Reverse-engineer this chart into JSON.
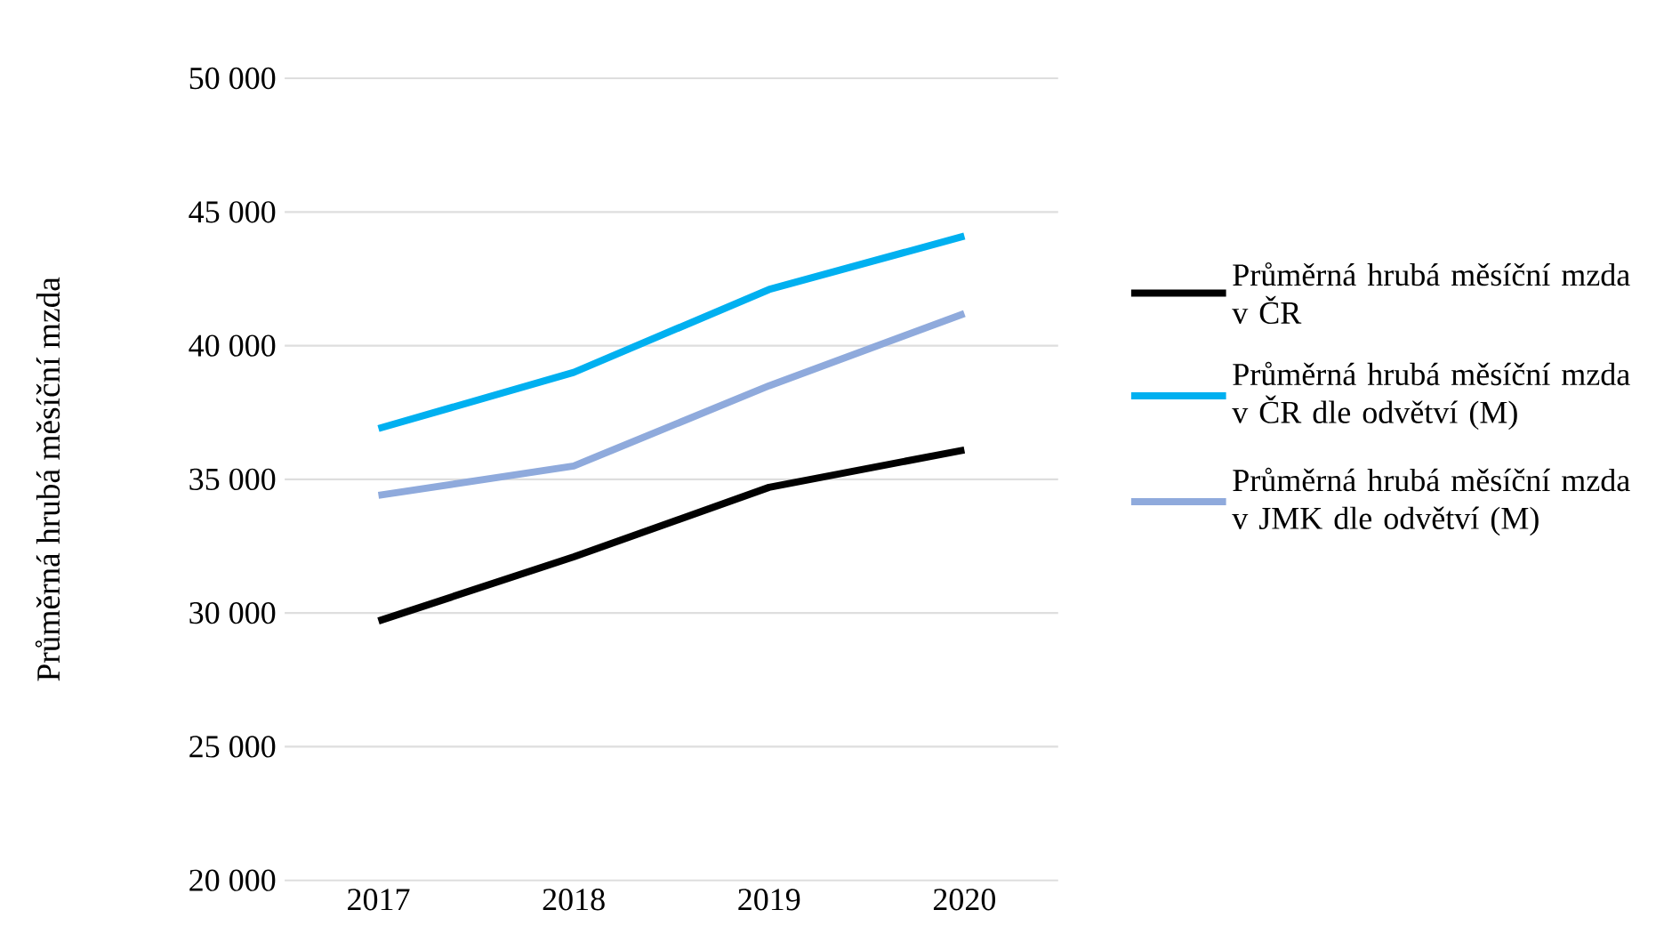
{
  "chart_data": {
    "type": "line",
    "ylabel": "Průměrná hrubá měsíční  mzda",
    "categories": [
      "2017",
      "2018",
      "2019",
      "2020"
    ],
    "series": [
      {
        "name": "Průměrná hrubá měsíční mzda v ČR",
        "color": "#000000",
        "values": [
          29700,
          32100,
          34700,
          36100
        ]
      },
      {
        "name": "Průměrná hrubá měsíční mzda v ČR dle odvětví (M)",
        "color": "#00b0f0",
        "values": [
          36900,
          39000,
          42100,
          44100
        ]
      },
      {
        "name": "Průměrná hrubá měsíční mzda v JMK dle odvětví (M)",
        "color": "#8faadc",
        "values": [
          34400,
          35500,
          38500,
          41200
        ]
      }
    ],
    "ylim": [
      20000,
      50000
    ],
    "yticks": [
      {
        "value": 20000,
        "label": "20 000"
      },
      {
        "value": 25000,
        "label": "25 000"
      },
      {
        "value": 30000,
        "label": "30 000"
      },
      {
        "value": 35000,
        "label": "35 000"
      },
      {
        "value": 40000,
        "label": "40 000"
      },
      {
        "value": 45000,
        "label": "45 000"
      },
      {
        "value": 50000,
        "label": "50 000"
      }
    ],
    "grid": "y",
    "legend": "right"
  }
}
